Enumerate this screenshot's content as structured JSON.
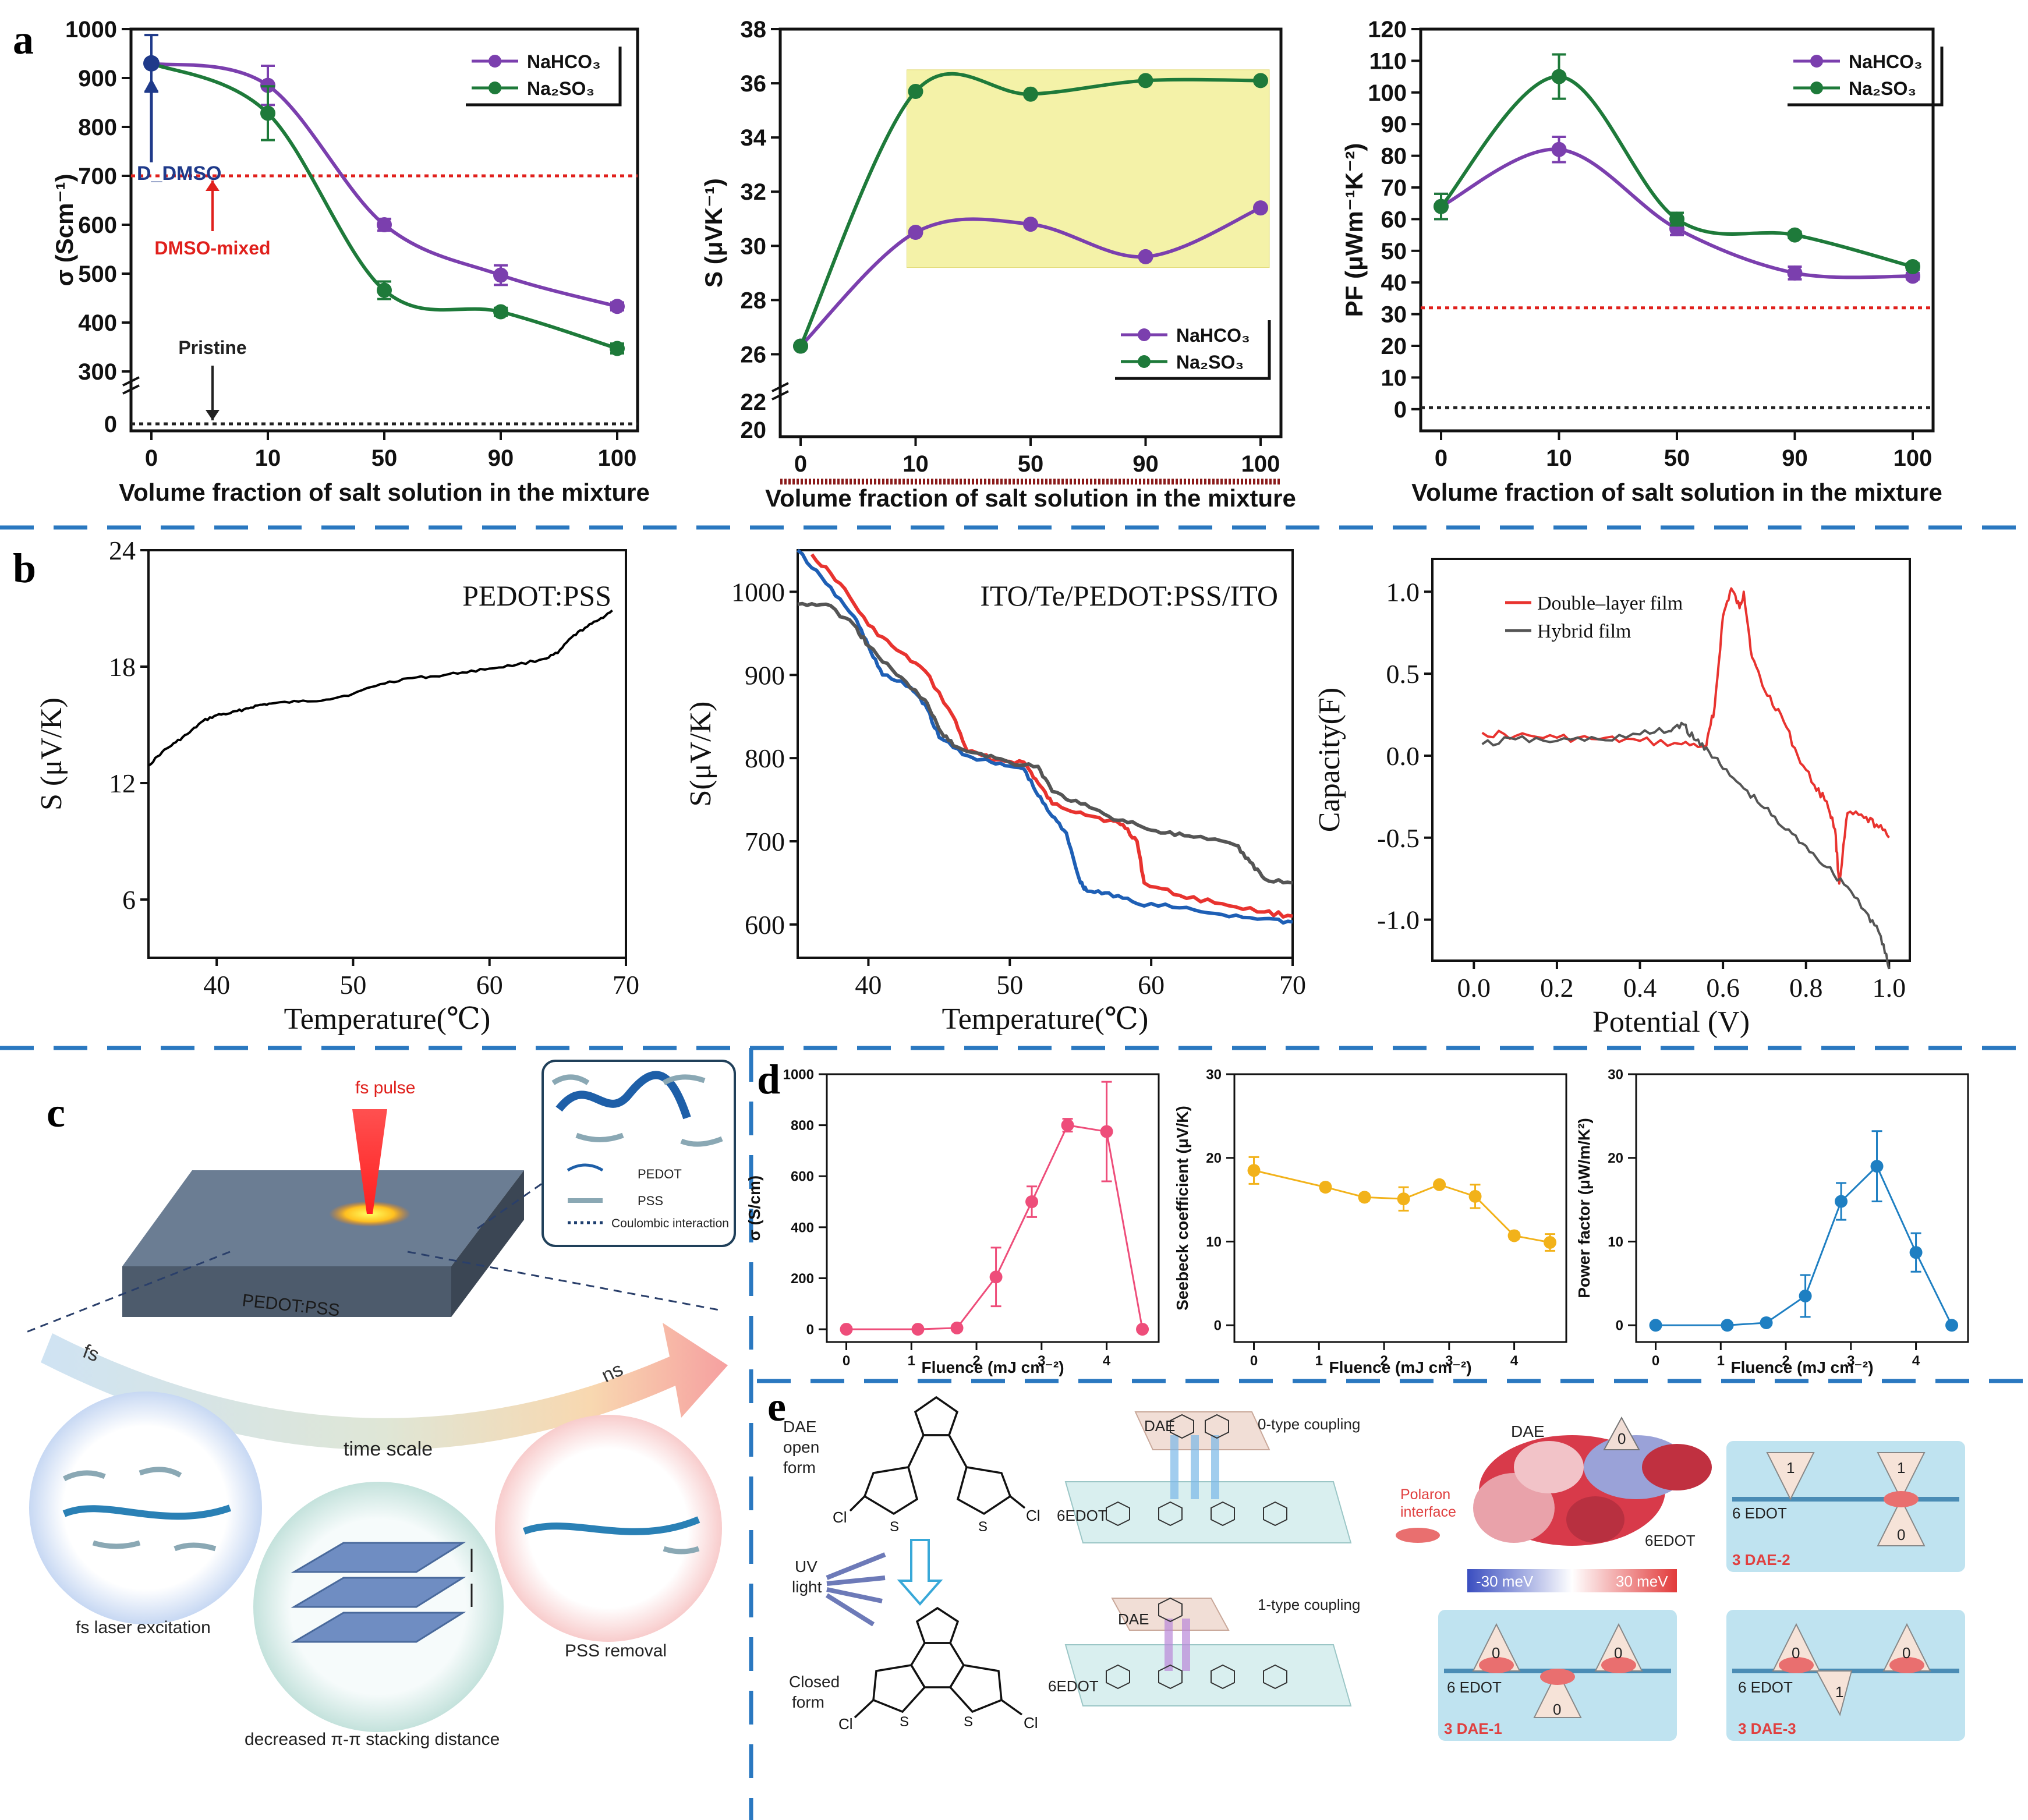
{
  "panel_letters": [
    "a",
    "b",
    "c",
    "d",
    "e"
  ],
  "colors": {
    "nahco3": "#7b3fae",
    "na2so3": "#1e7a3a",
    "red_ref": "#e0201c",
    "black_ref": "#222222",
    "blue_point": "#1f3a8a",
    "highlight": "#f4f2a8",
    "double_layer": "#e8332f",
    "hybrid": "#555555",
    "pink": "#ee4d7a",
    "amber": "#f2b21a",
    "blue": "#1e7fc2",
    "separator": "#2a78c0"
  },
  "chart_data": [
    {
      "id": "a1",
      "type": "line",
      "x_categories": [
        "0",
        "10",
        "50",
        "90",
        "100"
      ],
      "ylabel": "σ (Scm⁻¹)",
      "xlabel": "Volume fraction of salt solution in the mixture",
      "y_ticks": [
        "300",
        "400",
        "500",
        "600",
        "700",
        "800",
        "900",
        "1000"
      ],
      "y_break_ticks": [
        "0"
      ],
      "ylim": [
        250,
        1000
      ],
      "series": [
        {
          "name": "NaHCO₃",
          "color": "#7b3fae",
          "values": [
            930,
            885,
            600,
            497,
            433
          ],
          "errors": [
            0,
            40,
            12,
            20,
            8
          ]
        },
        {
          "name": "Na₂SO₃",
          "color": "#1e7a3a",
          "values": [
            930,
            828,
            466,
            422,
            347
          ],
          "errors": [
            0,
            55,
            18,
            8,
            10
          ]
        }
      ],
      "pristine_point": {
        "label": "D_DMSO",
        "value": 930,
        "error": 58
      },
      "reference_lines": [
        {
          "label": "DMSO-mixed",
          "value": 700,
          "color": "#e0201c"
        },
        {
          "label": "Pristine",
          "value": 0,
          "color": "#222222"
        }
      ]
    },
    {
      "id": "a2",
      "type": "line",
      "x_categories": [
        "0",
        "10",
        "50",
        "90",
        "100"
      ],
      "ylabel": "S (μVK⁻¹)",
      "xlabel": "Volume fraction of salt solution in the mixture",
      "y_ticks": [
        "26",
        "28",
        "30",
        "32",
        "34",
        "36",
        "38"
      ],
      "y_break_ticks": [
        "20",
        "22"
      ],
      "ylim": [
        25,
        38
      ],
      "series": [
        {
          "name": "NaHCO₃",
          "color": "#7b3fae",
          "values": [
            26.3,
            30.5,
            30.8,
            29.6,
            31.4
          ]
        },
        {
          "name": "Na₂SO₃",
          "color": "#1e7a3a",
          "values": [
            26.3,
            35.7,
            35.6,
            36.1,
            36.1
          ]
        }
      ],
      "reference_lines": [
        {
          "value": 21.3,
          "color": "#8b1a1a"
        }
      ],
      "highlight": {
        "x_from": "10",
        "x_to": "100",
        "y_from": 29.2,
        "y_to": 36.5
      }
    },
    {
      "id": "a3",
      "type": "line",
      "x_categories": [
        "0",
        "10",
        "50",
        "90",
        "100"
      ],
      "ylabel": "PF (μWm⁻¹K⁻²)",
      "xlabel": "Volume fraction of salt solution in the mixture",
      "y_ticks": [
        "0",
        "10",
        "20",
        "30",
        "40",
        "50",
        "60",
        "70",
        "80",
        "90",
        "100",
        "110",
        "120"
      ],
      "ylim": [
        -5,
        120
      ],
      "series": [
        {
          "name": "NaHCO₃",
          "color": "#7b3fae",
          "values": [
            64,
            82,
            57,
            43,
            42
          ],
          "errors": [
            4,
            4,
            2,
            2,
            1
          ]
        },
        {
          "name": "Na₂SO₃",
          "color": "#1e7a3a",
          "values": [
            64,
            105,
            60,
            55,
            45
          ],
          "errors": [
            4,
            7,
            2,
            1,
            1
          ]
        }
      ],
      "reference_lines": [
        {
          "value": 32,
          "color": "#e0201c"
        },
        {
          "value": 0.5,
          "color": "#222222"
        }
      ]
    },
    {
      "id": "b1",
      "type": "line",
      "annotation": "PEDOT:PSS",
      "xlabel": "Temperature(℃)",
      "ylabel": "S (μV/K)",
      "xlim": [
        35,
        70
      ],
      "ylim": [
        3,
        24
      ],
      "x_ticks": [
        40,
        50,
        60,
        70
      ],
      "y_ticks": [
        6,
        12,
        18,
        24
      ],
      "series": [
        {
          "color": "#000000",
          "points": [
            [
              35,
              12.9
            ],
            [
              36,
              13.6
            ],
            [
              37,
              14.1
            ],
            [
              38,
              14.6
            ],
            [
              39,
              15.2
            ],
            [
              40,
              15.5
            ],
            [
              41,
              15.6
            ],
            [
              42,
              15.8
            ],
            [
              43,
              16.0
            ],
            [
              44,
              16.1
            ],
            [
              46,
              16.2
            ],
            [
              48,
              16.3
            ],
            [
              50,
              16.6
            ],
            [
              52,
              17.1
            ],
            [
              54,
              17.4
            ],
            [
              56,
              17.5
            ],
            [
              58,
              17.7
            ],
            [
              60,
              17.9
            ],
            [
              62,
              18.1
            ],
            [
              64,
              18.4
            ],
            [
              65,
              18.7
            ],
            [
              66,
              19.5
            ],
            [
              67,
              20.0
            ],
            [
              68,
              20.4
            ],
            [
              69,
              20.9
            ]
          ]
        }
      ]
    },
    {
      "id": "b2",
      "type": "line",
      "annotation": "ITO/Te/PEDOT:PSS/ITO",
      "xlabel": "Temperature(℃)",
      "ylabel": "S(μV/K)",
      "xlim": [
        35,
        70
      ],
      "ylim": [
        560,
        1050
      ],
      "x_ticks": [
        40,
        50,
        60,
        70
      ],
      "y_ticks": [
        600,
        700,
        800,
        900,
        1000
      ],
      "series": [
        {
          "color": "#e8332f",
          "points": [
            [
              36,
              1045
            ],
            [
              38,
              1010
            ],
            [
              40,
              960
            ],
            [
              42,
              930
            ],
            [
              44,
              905
            ],
            [
              46,
              850
            ],
            [
              47,
              808
            ],
            [
              49,
              798
            ],
            [
              51,
              795
            ],
            [
              52,
              770
            ],
            [
              53,
              745
            ],
            [
              55,
              735
            ],
            [
              57,
              725
            ],
            [
              58,
              720
            ],
            [
              59,
              700
            ],
            [
              59.5,
              650
            ],
            [
              62,
              635
            ],
            [
              65,
              625
            ],
            [
              68,
              615
            ],
            [
              70,
              610
            ]
          ]
        },
        {
          "color": "#1e5fb5",
          "points": [
            [
              35,
              1050
            ],
            [
              37,
              1010
            ],
            [
              39,
              970
            ],
            [
              40,
              935
            ],
            [
              41,
              900
            ],
            [
              43,
              885
            ],
            [
              44,
              865
            ],
            [
              45,
              825
            ],
            [
              47,
              803
            ],
            [
              49,
              793
            ],
            [
              51,
              787
            ],
            [
              52,
              755
            ],
            [
              53,
              730
            ],
            [
              54,
              710
            ],
            [
              55,
              650
            ],
            [
              55.5,
              640
            ],
            [
              57,
              638
            ],
            [
              59,
              625
            ],
            [
              62,
              620
            ],
            [
              65,
              612
            ],
            [
              68,
              607
            ],
            [
              70,
              603
            ]
          ]
        },
        {
          "color": "#555555",
          "points": [
            [
              35,
              985
            ],
            [
              37,
              985
            ],
            [
              39,
              960
            ],
            [
              40,
              935
            ],
            [
              42,
              900
            ],
            [
              44,
              870
            ],
            [
              45,
              835
            ],
            [
              46,
              815
            ],
            [
              48,
              805
            ],
            [
              50,
              795
            ],
            [
              52,
              790
            ],
            [
              53,
              760
            ],
            [
              55,
              745
            ],
            [
              57,
              730
            ],
            [
              59,
              720
            ],
            [
              61,
              710
            ],
            [
              63,
              705
            ],
            [
              66,
              695
            ],
            [
              67,
              675
            ],
            [
              68,
              655
            ],
            [
              70,
              650
            ]
          ]
        }
      ]
    },
    {
      "id": "b3",
      "type": "line",
      "xlabel": "Potential (V)",
      "ylabel": "Capacity(F)",
      "xlim": [
        -0.1,
        1.05
      ],
      "ylim": [
        -1.25,
        1.2
      ],
      "x_ticks": [
        "0.0",
        "0.2",
        "0.4",
        "0.6",
        "0.8",
        "1.0"
      ],
      "y_ticks": [
        "1.0",
        "0.5",
        "0.0",
        "-0.5",
        "-1.0"
      ],
      "series": [
        {
          "name": "Double–layer film",
          "color": "#e8332f",
          "points": [
            [
              0.02,
              0.14
            ],
            [
              0.1,
              0.12
            ],
            [
              0.2,
              0.11
            ],
            [
              0.3,
              0.1
            ],
            [
              0.4,
              0.09
            ],
            [
              0.5,
              0.07
            ],
            [
              0.56,
              0.06
            ],
            [
              0.58,
              0.3
            ],
            [
              0.6,
              0.85
            ],
            [
              0.62,
              1.02
            ],
            [
              0.64,
              0.9
            ],
            [
              0.65,
              1.0
            ],
            [
              0.67,
              0.6
            ],
            [
              0.7,
              0.4
            ],
            [
              0.74,
              0.25
            ],
            [
              0.78,
              0.0
            ],
            [
              0.82,
              -0.18
            ],
            [
              0.85,
              -0.28
            ],
            [
              0.87,
              -0.45
            ],
            [
              0.88,
              -0.78
            ],
            [
              0.9,
              -0.35
            ],
            [
              0.94,
              -0.38
            ],
            [
              0.97,
              -0.42
            ],
            [
              1.0,
              -0.5
            ]
          ]
        },
        {
          "name": "Hybrid film",
          "color": "#555555",
          "points": [
            [
              0.02,
              0.07
            ],
            [
              0.1,
              0.1
            ],
            [
              0.2,
              0.09
            ],
            [
              0.3,
              0.1
            ],
            [
              0.4,
              0.13
            ],
            [
              0.47,
              0.15
            ],
            [
              0.5,
              0.2
            ],
            [
              0.53,
              0.1
            ],
            [
              0.56,
              0.05
            ],
            [
              0.6,
              -0.08
            ],
            [
              0.65,
              -0.2
            ],
            [
              0.7,
              -0.32
            ],
            [
              0.75,
              -0.45
            ],
            [
              0.8,
              -0.55
            ],
            [
              0.85,
              -0.68
            ],
            [
              0.9,
              -0.8
            ],
            [
              0.95,
              -0.97
            ],
            [
              0.98,
              -1.1
            ],
            [
              1.0,
              -1.3
            ]
          ]
        }
      ]
    },
    {
      "id": "d1",
      "type": "line",
      "xlabel": "Fluence (mJ cm⁻²)",
      "ylabel": "σ (S/cm)",
      "xlim": [
        -0.3,
        4.8
      ],
      "ylim": [
        -50,
        1000
      ],
      "x_ticks": [
        0,
        1,
        2,
        3,
        4
      ],
      "y_ticks": [
        0,
        200,
        400,
        600,
        800,
        1000
      ],
      "series": [
        {
          "color": "#ee4d7a",
          "points": [
            [
              0,
              0
            ],
            [
              1.1,
              0
            ],
            [
              1.7,
              5
            ],
            [
              2.3,
              205
            ],
            [
              2.85,
              500
            ],
            [
              3.4,
              800
            ],
            [
              4.0,
              775
            ],
            [
              4.55,
              0
            ]
          ],
          "errors": [
            0,
            0,
            10,
            115,
            60,
            25,
            195,
            0
          ]
        }
      ]
    },
    {
      "id": "d2",
      "type": "line",
      "xlabel": "Fluence (mJ cm⁻²)",
      "ylabel": "Seebeck coefficient (μV/K)",
      "xlim": [
        -0.3,
        4.8
      ],
      "ylim": [
        -2,
        30
      ],
      "x_ticks": [
        0,
        1,
        2,
        3,
        4
      ],
      "y_ticks": [
        0,
        10,
        20,
        30
      ],
      "series": [
        {
          "color": "#f2b21a",
          "points": [
            [
              0,
              18.5
            ],
            [
              1.1,
              16.5
            ],
            [
              1.7,
              15.3
            ],
            [
              2.3,
              15.1
            ],
            [
              2.85,
              16.8
            ],
            [
              3.4,
              15.4
            ],
            [
              4.0,
              10.7
            ],
            [
              4.55,
              9.9
            ]
          ],
          "errors": [
            1.6,
            0.4,
            0.4,
            1.4,
            0.3,
            1.4,
            0.4,
            1.0
          ]
        }
      ]
    },
    {
      "id": "d3",
      "type": "line",
      "xlabel": "Fluence (mJ cm⁻²)",
      "ylabel": "Power factor (μW/m/K²)",
      "xlim": [
        -0.3,
        4.8
      ],
      "ylim": [
        -2,
        30
      ],
      "x_ticks": [
        0,
        1,
        2,
        3,
        4
      ],
      "y_ticks": [
        0,
        10,
        20,
        30
      ],
      "series": [
        {
          "color": "#1e7fc2",
          "points": [
            [
              0,
              0
            ],
            [
              1.1,
              0
            ],
            [
              1.7,
              0.3
            ],
            [
              2.3,
              3.5
            ],
            [
              2.85,
              14.8
            ],
            [
              3.4,
              19
            ],
            [
              4.0,
              8.7
            ],
            [
              4.55,
              0
            ]
          ],
          "errors": [
            0,
            0,
            0.3,
            2.5,
            2.2,
            4.2,
            2.3,
            0
          ]
        }
      ]
    }
  ],
  "panel_c": {
    "fs_pulse": "fs pulse",
    "film": "PEDOT:PSS",
    "legend": [
      "PEDOT",
      "PSS",
      "Coulombic interaction"
    ],
    "fs": "fs",
    "ns": "ns",
    "time_scale": "time scale",
    "captions": [
      "fs laser excitation",
      "decreased π-π stacking distance",
      "PSS  removal"
    ]
  },
  "panel_e": {
    "dae_open": [
      "DAE",
      "open",
      "form"
    ],
    "uv": [
      "UV",
      "light"
    ],
    "closed": [
      "Closed",
      "form"
    ],
    "cl": "Cl",
    "s": "S",
    "coupling0": "0-type coupling",
    "coupling1": "1-type coupling",
    "dae": "DAE",
    "edot6": "6EDOT",
    "polaron": [
      "Polaron",
      "interface"
    ],
    "scale": [
      "-30 meV",
      "30 meV"
    ],
    "edot_label": "6 EDOT",
    "box_dae2": "3 DAE-2",
    "box_dae1": "3 DAE-1",
    "box_dae3": "3 DAE-3",
    "numbers": {
      "zero": "0",
      "one": "1"
    }
  }
}
